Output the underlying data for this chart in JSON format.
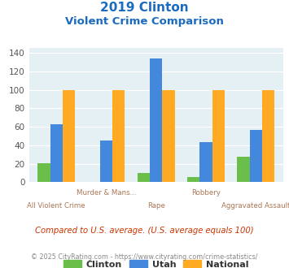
{
  "title_line1": "2019 Clinton",
  "title_line2": "Violent Crime Comparison",
  "categories": [
    "All Violent Crime",
    "Murder & Mans...",
    "Rape",
    "Robbery",
    "Aggravated Assault"
  ],
  "top_labels": [
    "",
    "Murder & Mans...",
    "",
    "Robbery",
    ""
  ],
  "bottom_labels": [
    "All Violent Crime",
    "",
    "Rape",
    "",
    "Aggravated Assault"
  ],
  "clinton": [
    21,
    0,
    10,
    6,
    28
  ],
  "utah": [
    63,
    45,
    134,
    43,
    57
  ],
  "national": [
    100,
    100,
    100,
    100,
    100
  ],
  "clinton_color": "#6abf4b",
  "utah_color": "#4488dd",
  "national_color": "#ffaa22",
  "title_color": "#1a6bbf",
  "label_color": "#aa7755",
  "bg_color": "#e4f0f4",
  "ylim": [
    0,
    145
  ],
  "yticks": [
    0,
    20,
    40,
    60,
    80,
    100,
    120,
    140
  ],
  "footnote": "Compared to U.S. average. (U.S. average equals 100)",
  "copyright": "© 2025 CityRating.com - https://www.cityrating.com/crime-statistics/",
  "legend_labels": [
    "Clinton",
    "Utah",
    "National"
  ],
  "bar_width": 0.25
}
